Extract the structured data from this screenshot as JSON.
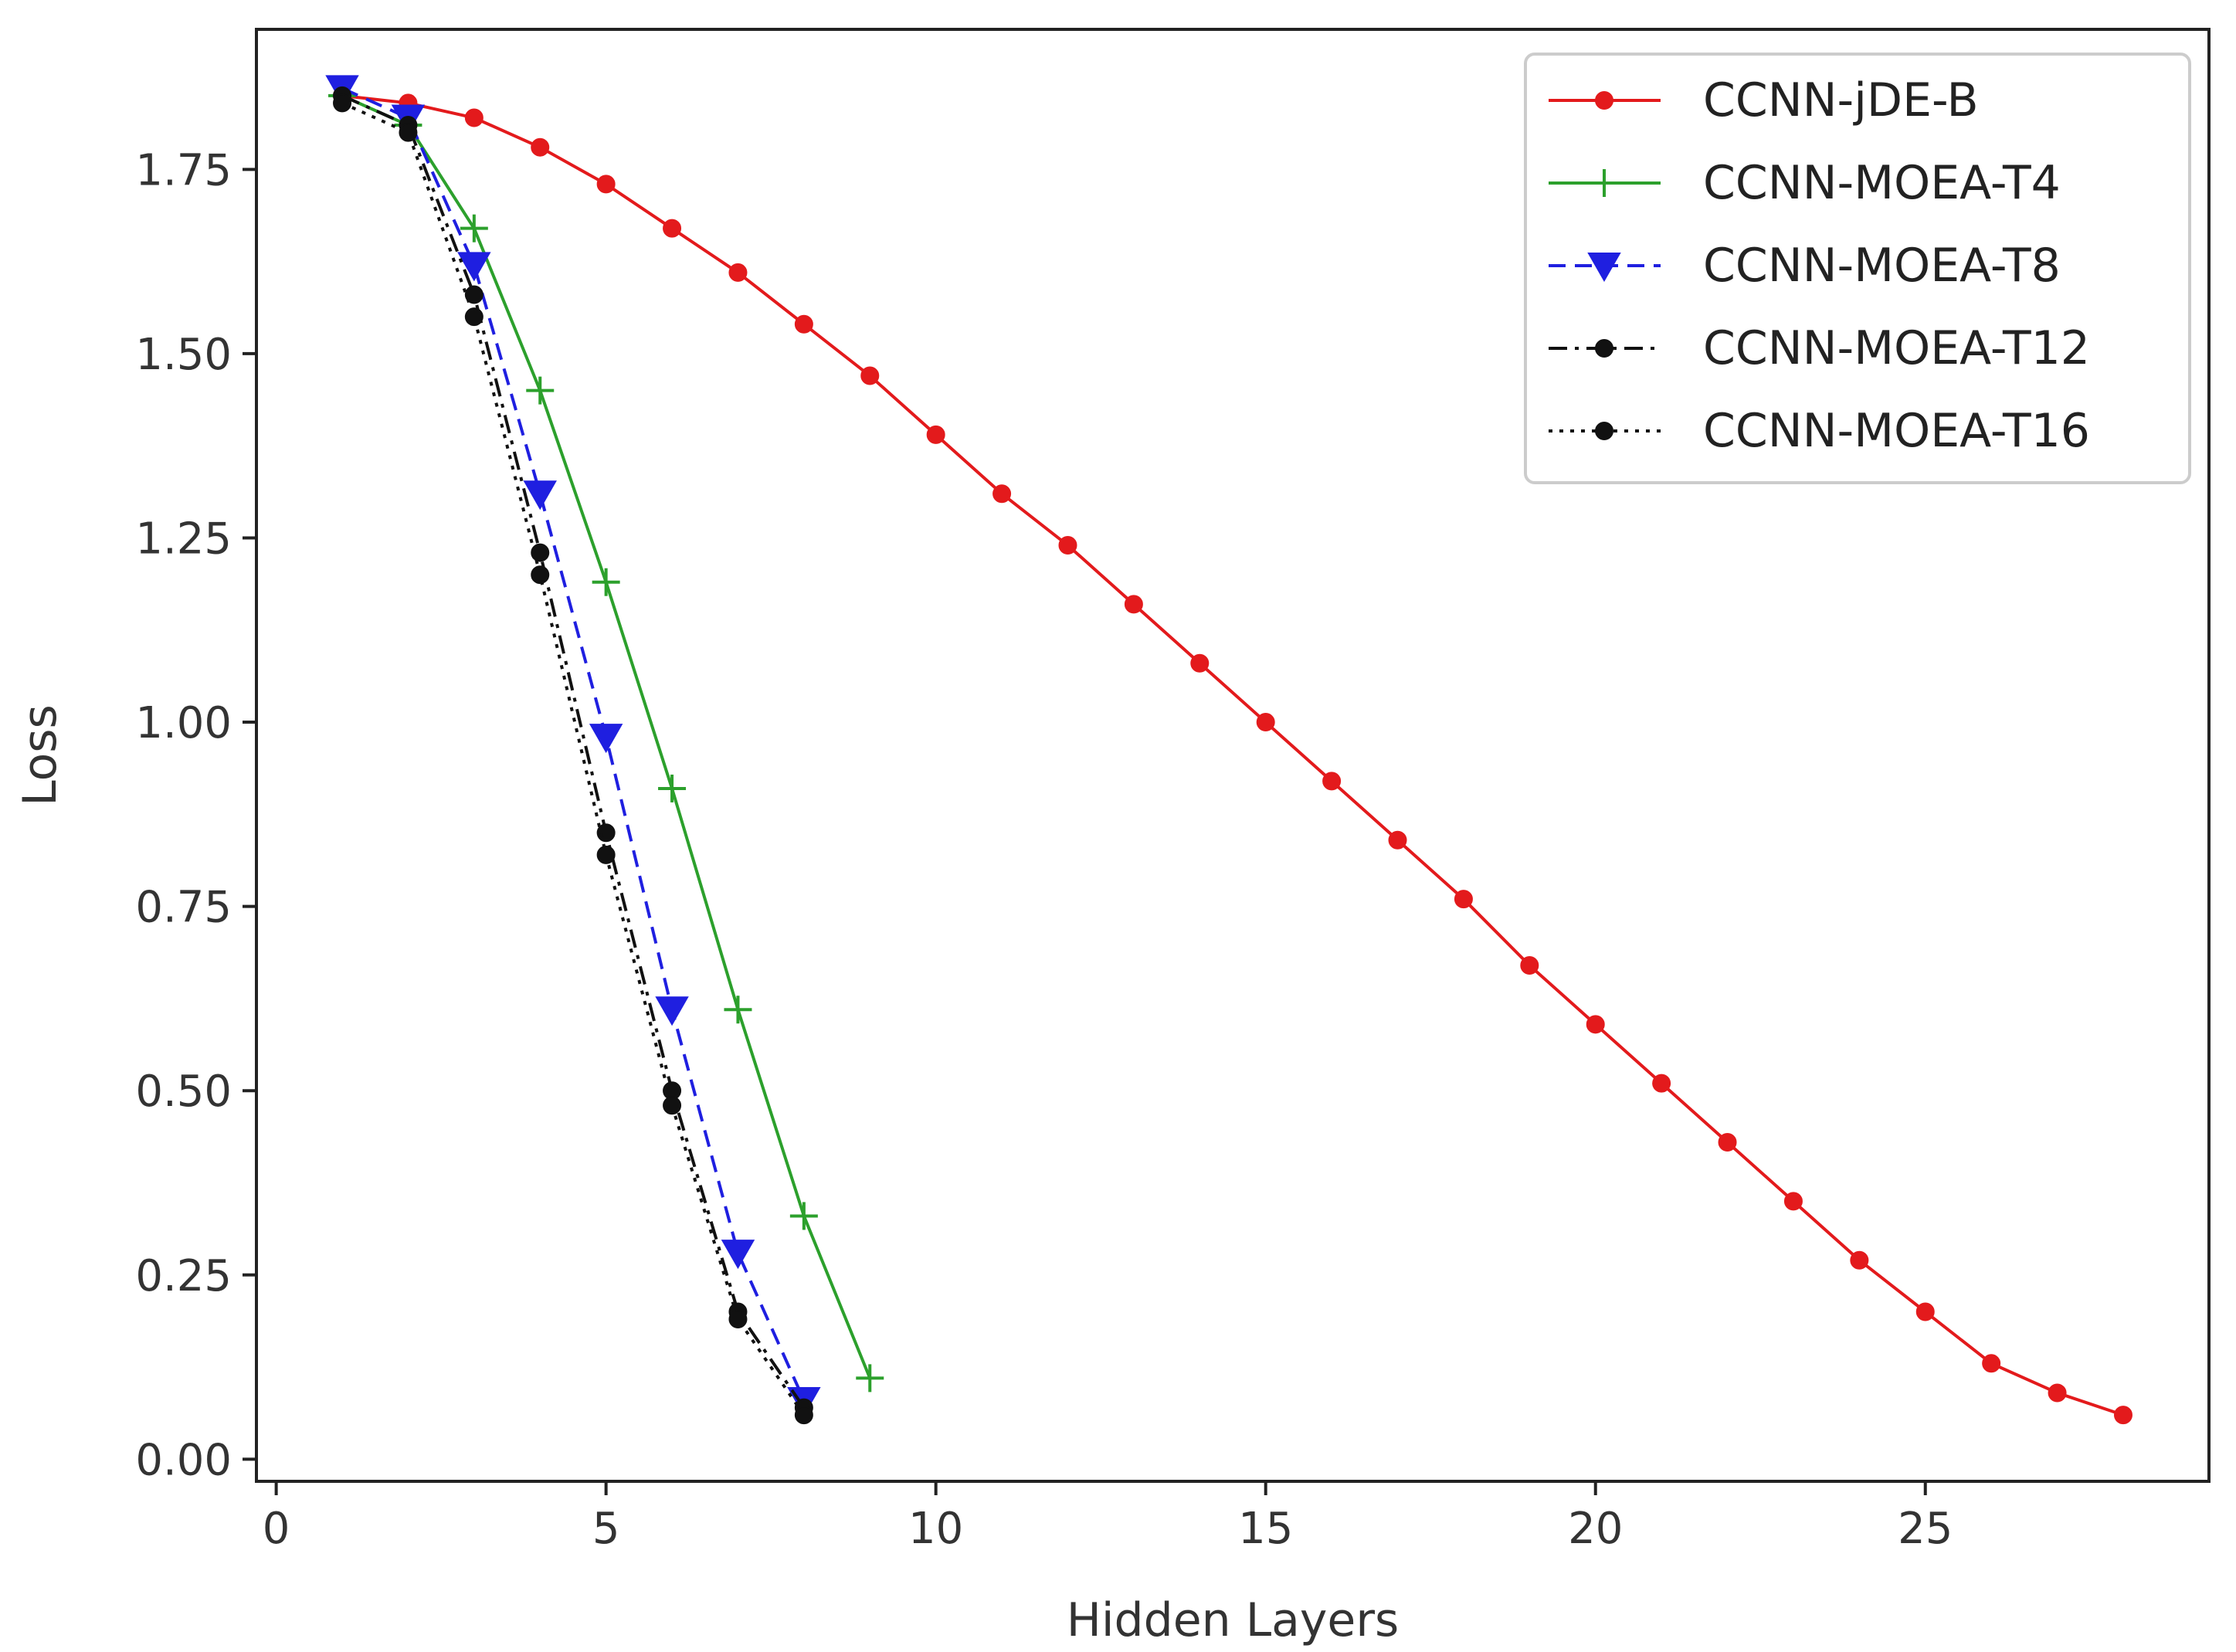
{
  "chart_data": {
    "type": "line",
    "title": "",
    "xlabel": "Hidden Layers",
    "ylabel": "Loss",
    "xlim": [
      -0.3,
      29.3
    ],
    "ylim": [
      -0.03,
      1.94
    ],
    "xticks": [
      0,
      5,
      10,
      15,
      20,
      25
    ],
    "yticks": [
      0.0,
      0.25,
      0.5,
      0.75,
      1.0,
      1.25,
      1.5,
      1.75
    ],
    "xtick_labels": [
      "0",
      "5",
      "10",
      "15",
      "20",
      "25"
    ],
    "ytick_labels": [
      "0.00",
      "0.25",
      "0.50",
      "0.75",
      "1.00",
      "1.25",
      "1.50",
      "1.75"
    ],
    "grid": false,
    "legend_position": "top-right",
    "series": [
      {
        "name": "CCNN-jDE-B",
        "color": "#e31a1c",
        "line_style": "solid",
        "marker": "circle",
        "x": [
          1,
          2,
          3,
          4,
          5,
          6,
          7,
          8,
          9,
          10,
          11,
          12,
          13,
          14,
          15,
          16,
          17,
          18,
          19,
          20,
          21,
          22,
          23,
          24,
          25,
          26,
          27,
          28
        ],
        "y": [
          1.85,
          1.84,
          1.82,
          1.78,
          1.73,
          1.67,
          1.61,
          1.54,
          1.47,
          1.39,
          1.31,
          1.24,
          1.16,
          1.08,
          1.0,
          0.92,
          0.84,
          0.76,
          0.67,
          0.59,
          0.51,
          0.43,
          0.35,
          0.27,
          0.2,
          0.13,
          0.09,
          0.06
        ]
      },
      {
        "name": "CCNN-MOEA-T4",
        "color": "#2ca02c",
        "line_style": "solid",
        "marker": "plus",
        "x": [
          1,
          2,
          3,
          4,
          5,
          6,
          7,
          8,
          9
        ],
        "y": [
          1.85,
          1.81,
          1.67,
          1.45,
          1.19,
          0.91,
          0.61,
          0.33,
          0.11
        ]
      },
      {
        "name": "CCNN-MOEA-T8",
        "color": "#1f1fe0",
        "line_style": "dashed",
        "marker": "triangle-down",
        "x": [
          1,
          2,
          3,
          4,
          5,
          6,
          7,
          8
        ],
        "y": [
          1.86,
          1.82,
          1.62,
          1.31,
          0.98,
          0.61,
          0.28,
          0.08
        ]
      },
      {
        "name": "CCNN-MOEA-T12",
        "color": "#111111",
        "line_style": "dashdot",
        "marker": "circle",
        "x": [
          1,
          2,
          3,
          4,
          5,
          6,
          7,
          8
        ],
        "y": [
          1.85,
          1.81,
          1.58,
          1.23,
          0.85,
          0.5,
          0.2,
          0.07
        ]
      },
      {
        "name": "CCNN-MOEA-T16",
        "color": "#111111",
        "line_style": "dotted",
        "marker": "circle",
        "x": [
          1,
          2,
          3,
          4,
          5,
          6,
          7,
          8
        ],
        "y": [
          1.84,
          1.8,
          1.55,
          1.2,
          0.82,
          0.48,
          0.19,
          0.06
        ]
      }
    ]
  }
}
